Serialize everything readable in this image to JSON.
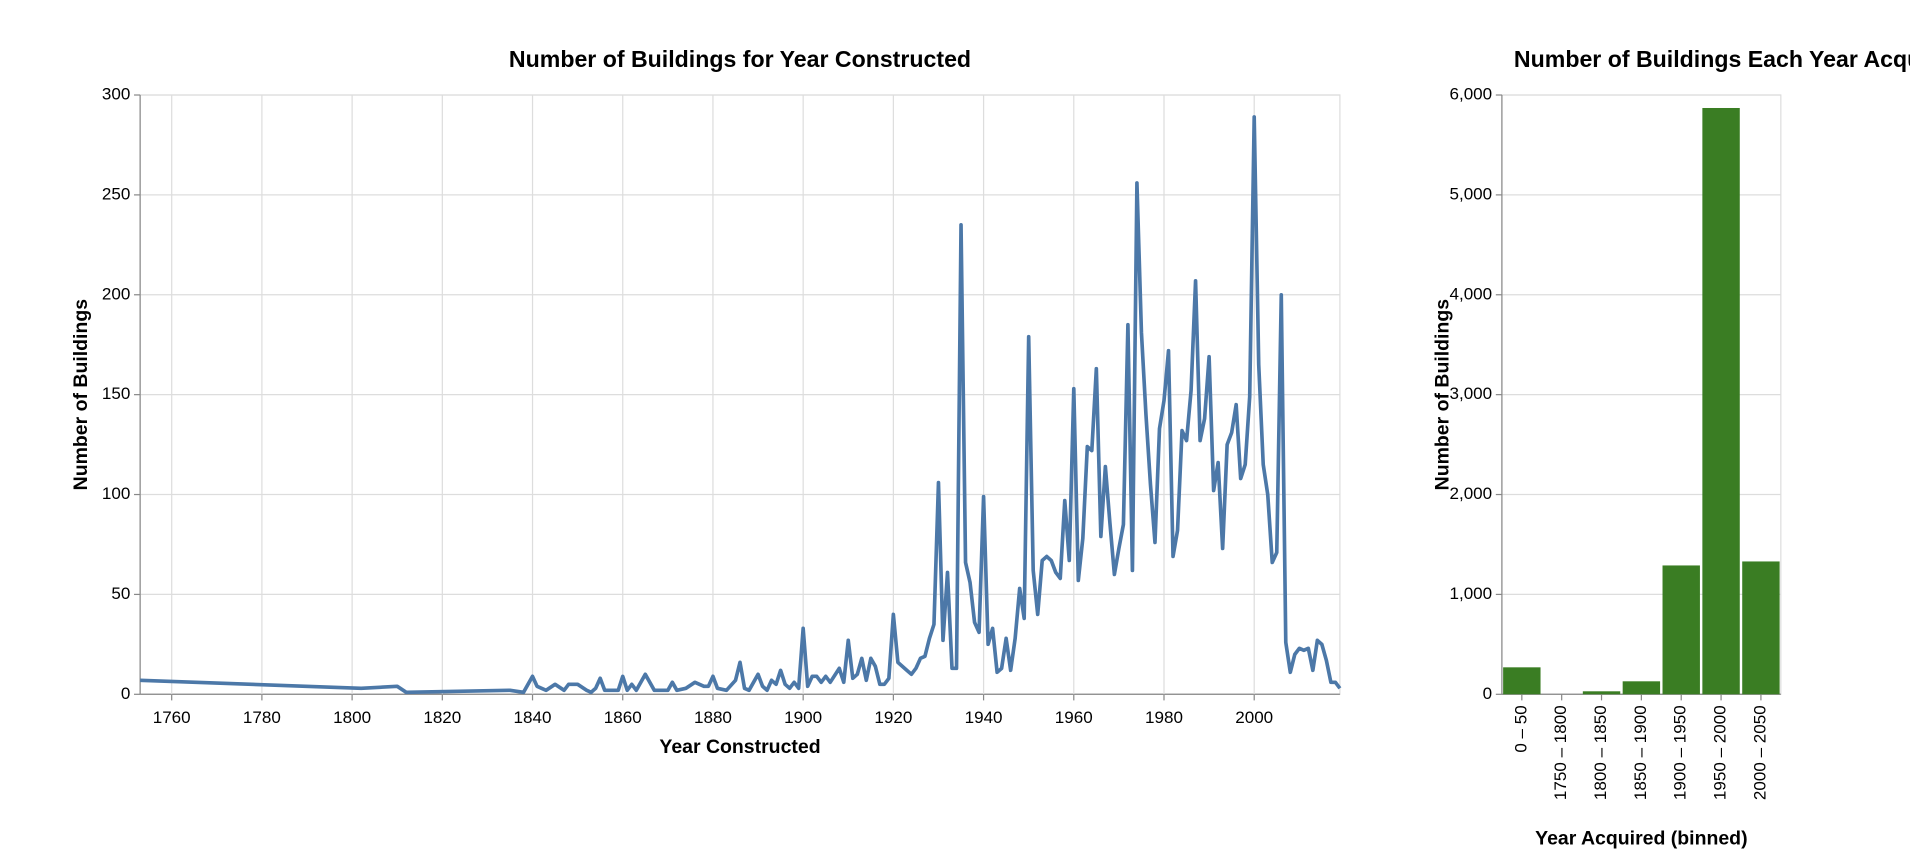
{
  "chart_data": [
    {
      "type": "line",
      "title": "Number of Buildings for Year Constructed",
      "x_label": "Year Constructed",
      "y_label": "Number of Buildings",
      "color": "#4c78a8",
      "grid": true,
      "xlim": [
        1753,
        2019
      ],
      "xticks": [
        1760,
        1780,
        1800,
        1820,
        1840,
        1860,
        1880,
        1900,
        1920,
        1940,
        1960,
        1980,
        2000
      ],
      "ylim": [
        0,
        300
      ],
      "yticks": [
        0,
        50,
        100,
        150,
        200,
        250,
        300
      ],
      "x": [
        1753,
        1802,
        1810,
        1812,
        1835,
        1838,
        1840,
        1841,
        1843,
        1845,
        1847,
        1848,
        1850,
        1852,
        1853,
        1854,
        1855,
        1856,
        1859,
        1860,
        1861,
        1862,
        1863,
        1865,
        1867,
        1870,
        1871,
        1872,
        1874,
        1876,
        1878,
        1879,
        1880,
        1881,
        1883,
        1885,
        1886,
        1887,
        1888,
        1890,
        1891,
        1892,
        1893,
        1894,
        1895,
        1896,
        1897,
        1898,
        1899,
        1900,
        1901,
        1902,
        1903,
        1904,
        1905,
        1906,
        1908,
        1909,
        1910,
        1911,
        1912,
        1913,
        1914,
        1915,
        1916,
        1917,
        1918,
        1919,
        1920,
        1921,
        1922,
        1923,
        1924,
        1925,
        1926,
        1927,
        1928,
        1929,
        1930,
        1931,
        1932,
        1933,
        1934,
        1935,
        1936,
        1937,
        1938,
        1939,
        1940,
        1941,
        1942,
        1943,
        1944,
        1945,
        1946,
        1947,
        1948,
        1949,
        1950,
        1951,
        1952,
        1953,
        1954,
        1955,
        1956,
        1957,
        1958,
        1959,
        1960,
        1961,
        1962,
        1963,
        1964,
        1965,
        1966,
        1967,
        1968,
        1969,
        1970,
        1971,
        1972,
        1973,
        1974,
        1975,
        1976,
        1977,
        1978,
        1979,
        1980,
        1981,
        1982,
        1983,
        1984,
        1985,
        1986,
        1987,
        1988,
        1989,
        1990,
        1991,
        1992,
        1993,
        1994,
        1995,
        1996,
        1997,
        1998,
        1999,
        2000,
        2001,
        2002,
        2003,
        2004,
        2005,
        2006,
        2007,
        2008,
        2009,
        2010,
        2011,
        2012,
        2013,
        2014,
        2015,
        2016,
        2017,
        2018,
        2019
      ],
      "values": [
        7,
        3,
        4,
        1,
        2,
        1,
        9,
        4,
        2,
        5,
        2,
        5,
        5,
        2,
        1,
        3,
        8,
        2,
        2,
        9,
        2,
        5,
        2,
        10,
        2,
        2,
        6,
        2,
        3,
        6,
        4,
        4,
        9,
        3,
        2,
        7,
        16,
        3,
        2,
        10,
        4,
        2,
        7,
        5,
        12,
        5,
        3,
        6,
        3,
        33,
        4,
        9,
        9,
        6,
        9,
        6,
        13,
        6,
        27,
        8,
        10,
        18,
        7,
        18,
        14,
        5,
        5,
        8,
        40,
        16,
        14,
        12,
        10,
        13,
        18,
        19,
        28,
        35,
        106,
        27,
        61,
        13,
        13,
        235,
        66,
        56,
        36,
        31,
        99,
        25,
        33,
        11,
        13,
        28,
        12,
        28,
        53,
        38,
        179,
        62,
        40,
        67,
        69,
        67,
        61,
        58,
        97,
        67,
        153,
        57,
        78,
        124,
        122,
        163,
        79,
        114,
        86,
        60,
        73,
        85,
        185,
        62,
        256,
        181,
        140,
        105,
        76,
        133,
        147,
        172,
        69,
        82,
        132,
        127,
        152,
        207,
        127,
        138,
        169,
        102,
        116,
        73,
        125,
        131,
        145,
        108,
        115,
        149,
        289,
        165,
        115,
        100,
        66,
        71,
        200,
        26,
        11,
        20,
        23,
        22,
        23,
        12,
        27,
        25,
        17,
        6,
        6,
        3
      ]
    },
    {
      "type": "bar",
      "title": "Number of Buildings Each Year Acquired",
      "x_label": "Year Acquired (binned)",
      "y_label": "Number of Buildings",
      "color": "#3a7d23",
      "grid": true,
      "categories": [
        "0 – 50",
        "1750 – 1800",
        "1800 – 1850",
        "1850 – 1900",
        "1900 – 1950",
        "1950 – 2000",
        "2000 – 2050"
      ],
      "values": [
        270,
        0,
        30,
        130,
        1290,
        5870,
        1330
      ],
      "ylim": [
        0,
        6000
      ],
      "yticks": [
        0,
        {
          "value": 1000,
          "label": "1,000"
        },
        {
          "value": 2000,
          "label": "2,000"
        },
        {
          "value": 3000,
          "label": "3,000"
        },
        {
          "value": 4000,
          "label": "4,000"
        },
        {
          "value": 5000,
          "label": "5,000"
        },
        {
          "value": 6000,
          "label": "6,000"
        }
      ]
    }
  ]
}
